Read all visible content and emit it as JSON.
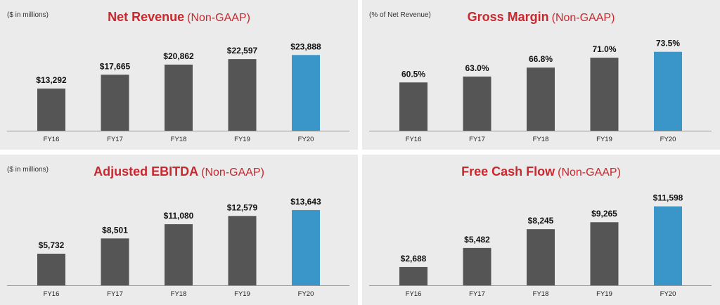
{
  "colors": {
    "bar": "#555555",
    "highlight": "#3a96c8",
    "title": "#c8282e",
    "panel_bg": "#ebebeb",
    "axis": "#999999"
  },
  "chart_data": [
    {
      "type": "bar",
      "title": "Net Revenue",
      "subtitle": "(Non-GAAP)",
      "unit_note": "($ in millions)",
      "categories": [
        "FY16",
        "FY17",
        "FY18",
        "FY19",
        "FY20"
      ],
      "values": [
        13292,
        17665,
        20862,
        22597,
        23888
      ],
      "value_labels": [
        "$13,292",
        "$17,665",
        "$20,862",
        "$22,597",
        "$23,888"
      ],
      "highlight_index": 4,
      "ylim": [
        0,
        27500
      ]
    },
    {
      "type": "bar",
      "title": "Gross Margin",
      "subtitle": "(Non-GAAP)",
      "unit_note": "(% of Net Revenue)",
      "categories": [
        "FY16",
        "FY17",
        "FY18",
        "FY19",
        "FY20"
      ],
      "values": [
        60.5,
        63.0,
        66.8,
        71.0,
        73.5
      ],
      "value_labels": [
        "60.5%",
        "63.0%",
        "66.8%",
        "71.0%",
        "73.5%"
      ],
      "highlight_index": 4,
      "ylim": [
        40,
        77
      ]
    },
    {
      "type": "bar",
      "title": "Adjusted EBITDA",
      "subtitle": "(Non-GAAP)",
      "unit_note": "($ in millions)",
      "categories": [
        "FY16",
        "FY17",
        "FY18",
        "FY19",
        "FY20"
      ],
      "values": [
        5732,
        8501,
        11080,
        12579,
        13643
      ],
      "value_labels": [
        "$5,732",
        "$8,501",
        "$11,080",
        "$12,579",
        "$13,643"
      ],
      "highlight_index": 4,
      "ylim": [
        0,
        15800
      ]
    },
    {
      "type": "bar",
      "title": "Free Cash Flow",
      "subtitle": "(Non-GAAP)",
      "unit_note": "",
      "categories": [
        "FY16",
        "FY17",
        "FY18",
        "FY19",
        "FY20"
      ],
      "values": [
        2688,
        5482,
        8245,
        9265,
        11598
      ],
      "value_labels": [
        "$2,688",
        "$5,482",
        "$8,245",
        "$9,265",
        "$11,598"
      ],
      "highlight_index": 4,
      "ylim": [
        0,
        12800
      ]
    }
  ]
}
